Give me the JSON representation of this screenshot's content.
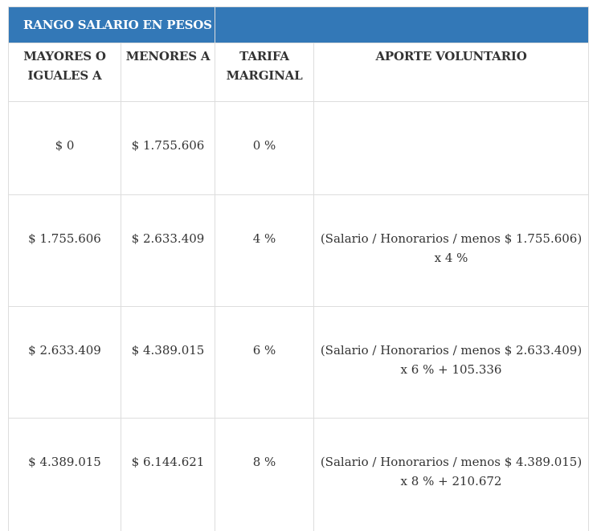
{
  "header": {
    "range_title": "RANGO SALARIO EN PESOS",
    "right_title": ""
  },
  "columns": {
    "col1": "MAYORES O IGUALES A",
    "col2": "MENORES A",
    "col3": "TARIFA MARGINAL",
    "col4": "APORTE VOLUNTARIO"
  },
  "rows": [
    {
      "from": "$ 0",
      "to": "$ 1.755.606",
      "rate": "0 %",
      "contribution": ""
    },
    {
      "from": "$ 1.755.606",
      "to": "$ 2.633.409",
      "rate": "4 %",
      "contribution": "(Salario / Honorarios / menos $ 1.755.606) x 4 %"
    },
    {
      "from": "$ 2.633.409",
      "to": "$ 4.389.015",
      "rate": "6 %",
      "contribution": "(Salario / Honorarios / menos $ 2.633.409) x 6 % + 105.336"
    },
    {
      "from": "$ 4.389.015",
      "to": "$ 6.144.621",
      "rate": "8 %",
      "contribution": "(Salario / Honorarios / menos $ 4.389.015) x 8 % + 210.672"
    }
  ],
  "colors": {
    "header_background": "#3378b7",
    "header_text": "#ffffff",
    "body_text": "#333333",
    "border": "#dddddd"
  }
}
